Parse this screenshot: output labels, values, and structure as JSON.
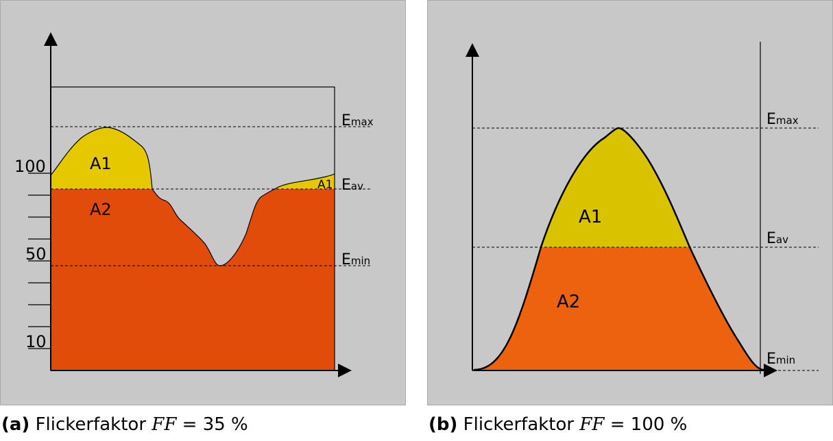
{
  "panel_a": {
    "y_ticks": {
      "t100": "100",
      "t50": "50",
      "t10": "10"
    },
    "lines": {
      "emax": {
        "main": "E",
        "sub": "max"
      },
      "eav": {
        "main": "E",
        "sub": "av"
      },
      "emin": {
        "main": "E",
        "sub": "min"
      }
    },
    "areas": {
      "a1": "A1",
      "a1_small": "A1",
      "a2": "A2"
    },
    "caption": {
      "tag": "(a)",
      "text": "Flickerfaktor",
      "symbol": "FF",
      "value": "= 35 %"
    }
  },
  "panel_b": {
    "lines": {
      "emax": {
        "main": "E",
        "sub": "max"
      },
      "eav": {
        "main": "E",
        "sub": "av"
      },
      "emin": {
        "main": "E",
        "sub": "min"
      }
    },
    "areas": {
      "a1": "A1",
      "a2": "A2"
    },
    "caption": {
      "tag": "(b)",
      "text": "Flickerfaktor",
      "symbol": "FF",
      "value": "= 100 %"
    }
  },
  "colors": {
    "background": "#c8c8c8",
    "a1_fill_a": "#e6c800",
    "a2_fill_a": "#e24c0a",
    "a1_fill_b": "#d9c300",
    "a2_fill_b": "#ec620e"
  }
}
